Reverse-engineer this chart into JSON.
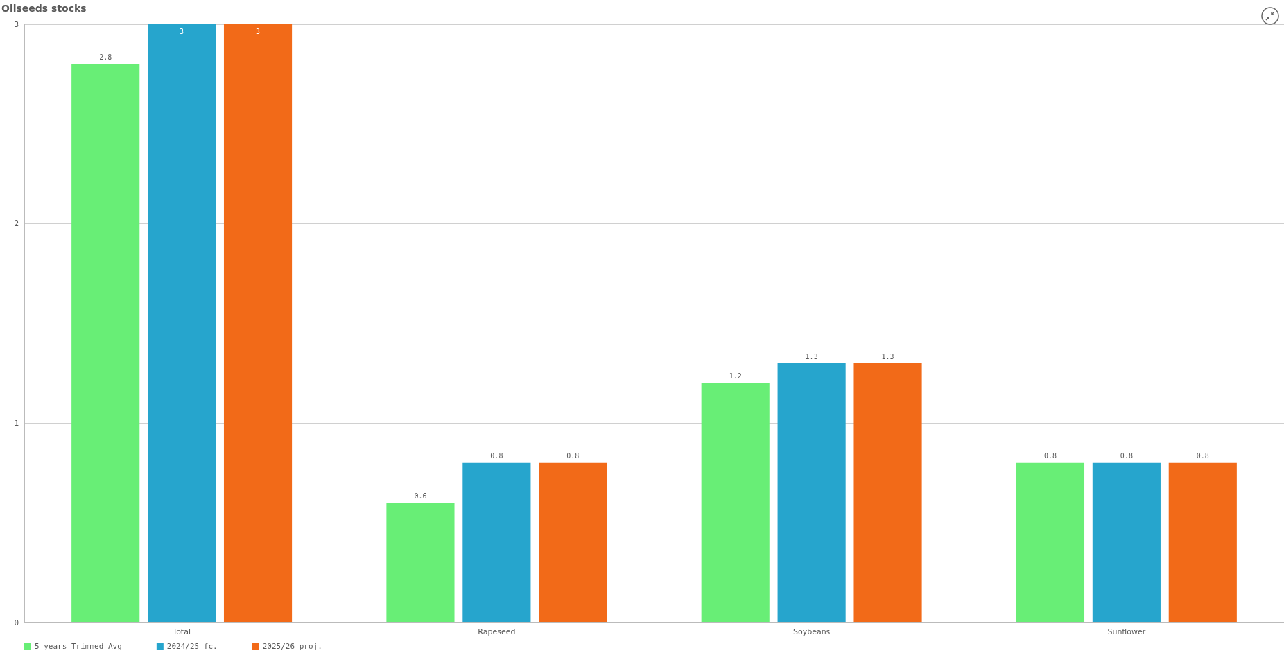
{
  "chart_data": {
    "type": "bar",
    "title": "Oilseeds stocks",
    "categories": [
      "Total",
      "Rapeseed",
      "Soybeans",
      "Sunflower"
    ],
    "series": [
      {
        "name": "5 years Trimmed Avg",
        "color": "#68ee76",
        "values": [
          2.8,
          0.6,
          1.2,
          0.8
        ]
      },
      {
        "name": "2024/25 fc.",
        "color": "#26a5cd",
        "values": [
          3,
          0.8,
          1.3,
          0.8
        ]
      },
      {
        "name": "2025/26 proj.",
        "color": "#f26a18",
        "values": [
          3,
          0.8,
          1.3,
          0.8
        ]
      }
    ],
    "ylim": [
      0,
      3
    ],
    "yticks": [
      0,
      1,
      2,
      3
    ],
    "grid": "y",
    "legend": "bottom left",
    "data_labels": true
  }
}
